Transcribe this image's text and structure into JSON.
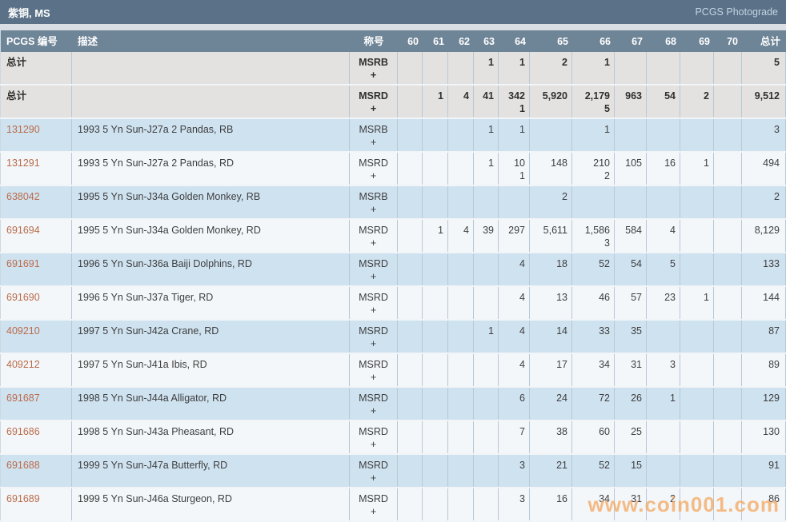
{
  "title_bar": {
    "title": "紫铜, MS",
    "link": "PCGS Photograde"
  },
  "columns": {
    "pcgs": "PCGS 编号",
    "desc": "描述",
    "designation": "称号",
    "grades": [
      "60",
      "61",
      "62",
      "63",
      "64",
      "65",
      "66",
      "67",
      "68",
      "69",
      "70"
    ],
    "total": "总计"
  },
  "labels": {
    "plus": "+"
  },
  "watermark": "www.coin001.com",
  "colors": {
    "title_bar_bg": "#5a7187",
    "header_bg": "#6e8497",
    "summary_row_bg": "#e3e2e1",
    "row_blue_bg": "#cfe2f0",
    "row_white_bg": "#f3f7fa",
    "link": "#bb6b49",
    "watermark": "#f5ab67"
  },
  "rows": [
    {
      "kind": "summary",
      "pcgs": "总计",
      "desc": "",
      "designation": "MSRB",
      "main": [
        "",
        "",
        "",
        "1",
        "1",
        "2",
        "1",
        "",
        "",
        "",
        ""
      ],
      "plus": [
        "",
        "",
        "",
        "",
        "",
        "",
        "",
        "",
        "",
        "",
        ""
      ],
      "total": "5"
    },
    {
      "kind": "summary",
      "pcgs": "总计",
      "desc": "",
      "designation": "MSRD",
      "main": [
        "",
        "1",
        "4",
        "41",
        "342",
        "5,920",
        "2,179",
        "963",
        "54",
        "2",
        ""
      ],
      "plus": [
        "",
        "",
        "",
        "",
        "1",
        "",
        "5",
        "",
        "",
        "",
        ""
      ],
      "total": "9,512"
    },
    {
      "kind": "item",
      "pcgs": "131290",
      "desc": "1993 5 Yn Sun-J27a 2 Pandas, RB",
      "designation": "MSRB",
      "main": [
        "",
        "",
        "",
        "1",
        "1",
        "",
        "1",
        "",
        "",
        "",
        ""
      ],
      "plus": [
        "",
        "",
        "",
        "",
        "",
        "",
        "",
        "",
        "",
        "",
        ""
      ],
      "total": "3"
    },
    {
      "kind": "item",
      "pcgs": "131291",
      "desc": "1993 5 Yn Sun-J27a 2 Pandas, RD",
      "designation": "MSRD",
      "main": [
        "",
        "",
        "",
        "1",
        "10",
        "148",
        "210",
        "105",
        "16",
        "1",
        ""
      ],
      "plus": [
        "",
        "",
        "",
        "",
        "1",
        "",
        "2",
        "",
        "",
        "",
        ""
      ],
      "total": "494"
    },
    {
      "kind": "item",
      "pcgs": "638042",
      "desc": "1995 5 Yn Sun-J34a Golden Monkey, RB",
      "designation": "MSRB",
      "main": [
        "",
        "",
        "",
        "",
        "",
        "2",
        "",
        "",
        "",
        "",
        ""
      ],
      "plus": [
        "",
        "",
        "",
        "",
        "",
        "",
        "",
        "",
        "",
        "",
        ""
      ],
      "total": "2"
    },
    {
      "kind": "item",
      "pcgs": "691694",
      "desc": "1995 5 Yn Sun-J34a Golden Monkey, RD",
      "designation": "MSRD",
      "main": [
        "",
        "1",
        "4",
        "39",
        "297",
        "5,611",
        "1,586",
        "584",
        "4",
        "",
        ""
      ],
      "plus": [
        "",
        "",
        "",
        "",
        "",
        "",
        "3",
        "",
        "",
        "",
        ""
      ],
      "total": "8,129"
    },
    {
      "kind": "item",
      "pcgs": "691691",
      "desc": "1996 5 Yn Sun-J36a Baiji Dolphins, RD",
      "designation": "MSRD",
      "main": [
        "",
        "",
        "",
        "",
        "4",
        "18",
        "52",
        "54",
        "5",
        "",
        ""
      ],
      "plus": [
        "",
        "",
        "",
        "",
        "",
        "",
        "",
        "",
        "",
        "",
        ""
      ],
      "total": "133"
    },
    {
      "kind": "item",
      "pcgs": "691690",
      "desc": "1996 5 Yn Sun-J37a Tiger, RD",
      "designation": "MSRD",
      "main": [
        "",
        "",
        "",
        "",
        "4",
        "13",
        "46",
        "57",
        "23",
        "1",
        ""
      ],
      "plus": [
        "",
        "",
        "",
        "",
        "",
        "",
        "",
        "",
        "",
        "",
        ""
      ],
      "total": "144"
    },
    {
      "kind": "item",
      "pcgs": "409210",
      "desc": "1997 5 Yn Sun-J42a Crane, RD",
      "designation": "MSRD",
      "main": [
        "",
        "",
        "",
        "1",
        "4",
        "14",
        "33",
        "35",
        "",
        "",
        ""
      ],
      "plus": [
        "",
        "",
        "",
        "",
        "",
        "",
        "",
        "",
        "",
        "",
        ""
      ],
      "total": "87"
    },
    {
      "kind": "item",
      "pcgs": "409212",
      "desc": "1997 5 Yn Sun-J41a Ibis, RD",
      "designation": "MSRD",
      "main": [
        "",
        "",
        "",
        "",
        "4",
        "17",
        "34",
        "31",
        "3",
        "",
        ""
      ],
      "plus": [
        "",
        "",
        "",
        "",
        "",
        "",
        "",
        "",
        "",
        "",
        ""
      ],
      "total": "89"
    },
    {
      "kind": "item",
      "pcgs": "691687",
      "desc": "1998 5 Yn Sun-J44a Alligator, RD",
      "designation": "MSRD",
      "main": [
        "",
        "",
        "",
        "",
        "6",
        "24",
        "72",
        "26",
        "1",
        "",
        ""
      ],
      "plus": [
        "",
        "",
        "",
        "",
        "",
        "",
        "",
        "",
        "",
        "",
        ""
      ],
      "total": "129"
    },
    {
      "kind": "item",
      "pcgs": "691686",
      "desc": "1998 5 Yn Sun-J43a Pheasant, RD",
      "designation": "MSRD",
      "main": [
        "",
        "",
        "",
        "",
        "7",
        "38",
        "60",
        "25",
        "",
        "",
        ""
      ],
      "plus": [
        "",
        "",
        "",
        "",
        "",
        "",
        "",
        "",
        "",
        "",
        ""
      ],
      "total": "130"
    },
    {
      "kind": "item",
      "pcgs": "691688",
      "desc": "1999 5 Yn Sun-J47a Butterfly, RD",
      "designation": "MSRD",
      "main": [
        "",
        "",
        "",
        "",
        "3",
        "21",
        "52",
        "15",
        "",
        "",
        ""
      ],
      "plus": [
        "",
        "",
        "",
        "",
        "",
        "",
        "",
        "",
        "",
        "",
        ""
      ],
      "total": "91"
    },
    {
      "kind": "item",
      "pcgs": "691689",
      "desc": "1999 5 Yn Sun-J46a Sturgeon, RD",
      "designation": "MSRD",
      "main": [
        "",
        "",
        "",
        "",
        "3",
        "16",
        "34",
        "31",
        "2",
        "",
        ""
      ],
      "plus": [
        "",
        "",
        "",
        "",
        "",
        "",
        "",
        "",
        "",
        "",
        ""
      ],
      "total": "86"
    }
  ]
}
